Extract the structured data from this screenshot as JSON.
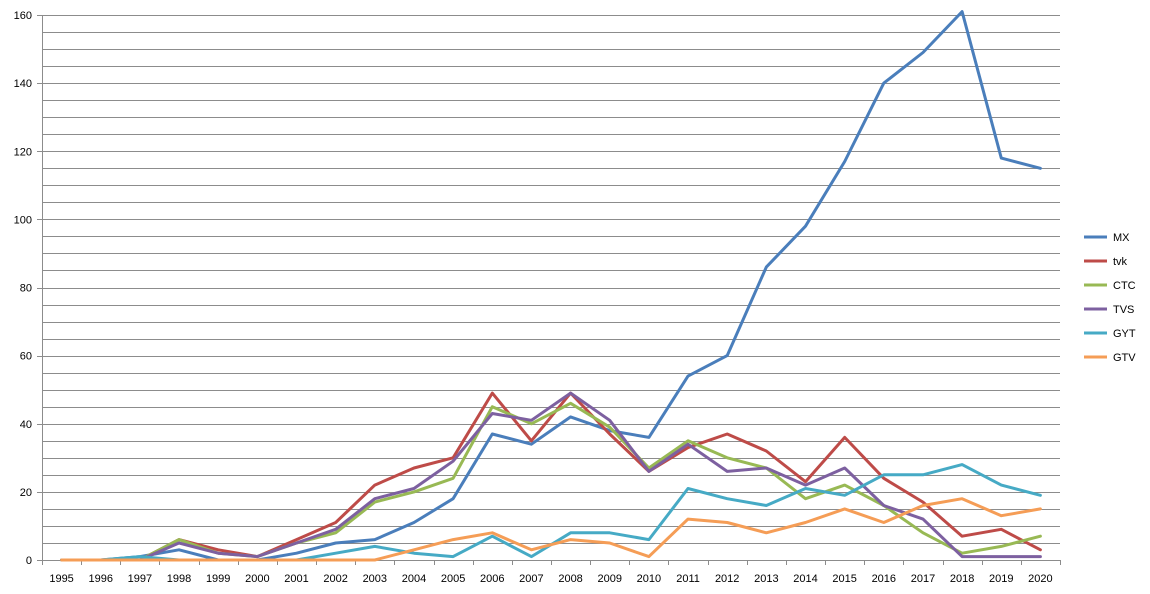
{
  "chart_data": {
    "type": "line",
    "title": "",
    "xlabel": "",
    "ylabel": "",
    "ylim": [
      0,
      160
    ],
    "y_ticks": [
      0,
      20,
      40,
      60,
      80,
      100,
      120,
      140,
      160
    ],
    "y_minor_step": 5,
    "grid": "horizontal",
    "legend_position": "right",
    "categories": [
      "1995",
      "1996",
      "1997",
      "1998",
      "1999",
      "2000",
      "2001",
      "2002",
      "2003",
      "2004",
      "2005",
      "2006",
      "2007",
      "2008",
      "2009",
      "2010",
      "2011",
      "2012",
      "2013",
      "2014",
      "2015",
      "2016",
      "2017",
      "2018",
      "2019",
      "2020"
    ],
    "series": [
      {
        "name": "MX",
        "color": "#4a7ebb",
        "values": [
          0,
          0,
          1,
          3,
          0,
          0,
          2,
          5,
          6,
          11,
          18,
          37,
          34,
          42,
          38,
          36,
          54,
          60,
          86,
          98,
          117,
          140,
          149,
          161,
          118,
          115
        ]
      },
      {
        "name": "tvk",
        "color": "#be4b48",
        "values": [
          0,
          0,
          0,
          6,
          3,
          1,
          6,
          11,
          22,
          27,
          30,
          49,
          35,
          49,
          37,
          26,
          33,
          37,
          32,
          23,
          36,
          24,
          17,
          7,
          9,
          3
        ]
      },
      {
        "name": "CTC",
        "color": "#98b954",
        "values": [
          0,
          0,
          0,
          6,
          2,
          1,
          5,
          8,
          17,
          20,
          24,
          45,
          40,
          46,
          39,
          27,
          35,
          30,
          27,
          18,
          22,
          16,
          8,
          2,
          4,
          7
        ]
      },
      {
        "name": "TVS",
        "color": "#7d60a0",
        "values": [
          0,
          0,
          0,
          5,
          2,
          1,
          5,
          9,
          18,
          21,
          29,
          43,
          41,
          49,
          41,
          26,
          34,
          26,
          27,
          22,
          27,
          16,
          12,
          1,
          1,
          1
        ]
      },
      {
        "name": "GYT",
        "color": "#46aac5",
        "values": [
          0,
          0,
          1,
          0,
          0,
          0,
          0,
          2,
          4,
          2,
          1,
          7,
          1,
          8,
          8,
          6,
          21,
          18,
          16,
          21,
          19,
          25,
          25,
          28,
          22,
          19
        ]
      },
      {
        "name": "GTV",
        "color": "#f59d56",
        "values": [
          0,
          0,
          0,
          0,
          0,
          0,
          0,
          0,
          0,
          3,
          6,
          8,
          3,
          6,
          5,
          1,
          12,
          11,
          8,
          11,
          15,
          11,
          16,
          18,
          13,
          15
        ]
      }
    ]
  }
}
